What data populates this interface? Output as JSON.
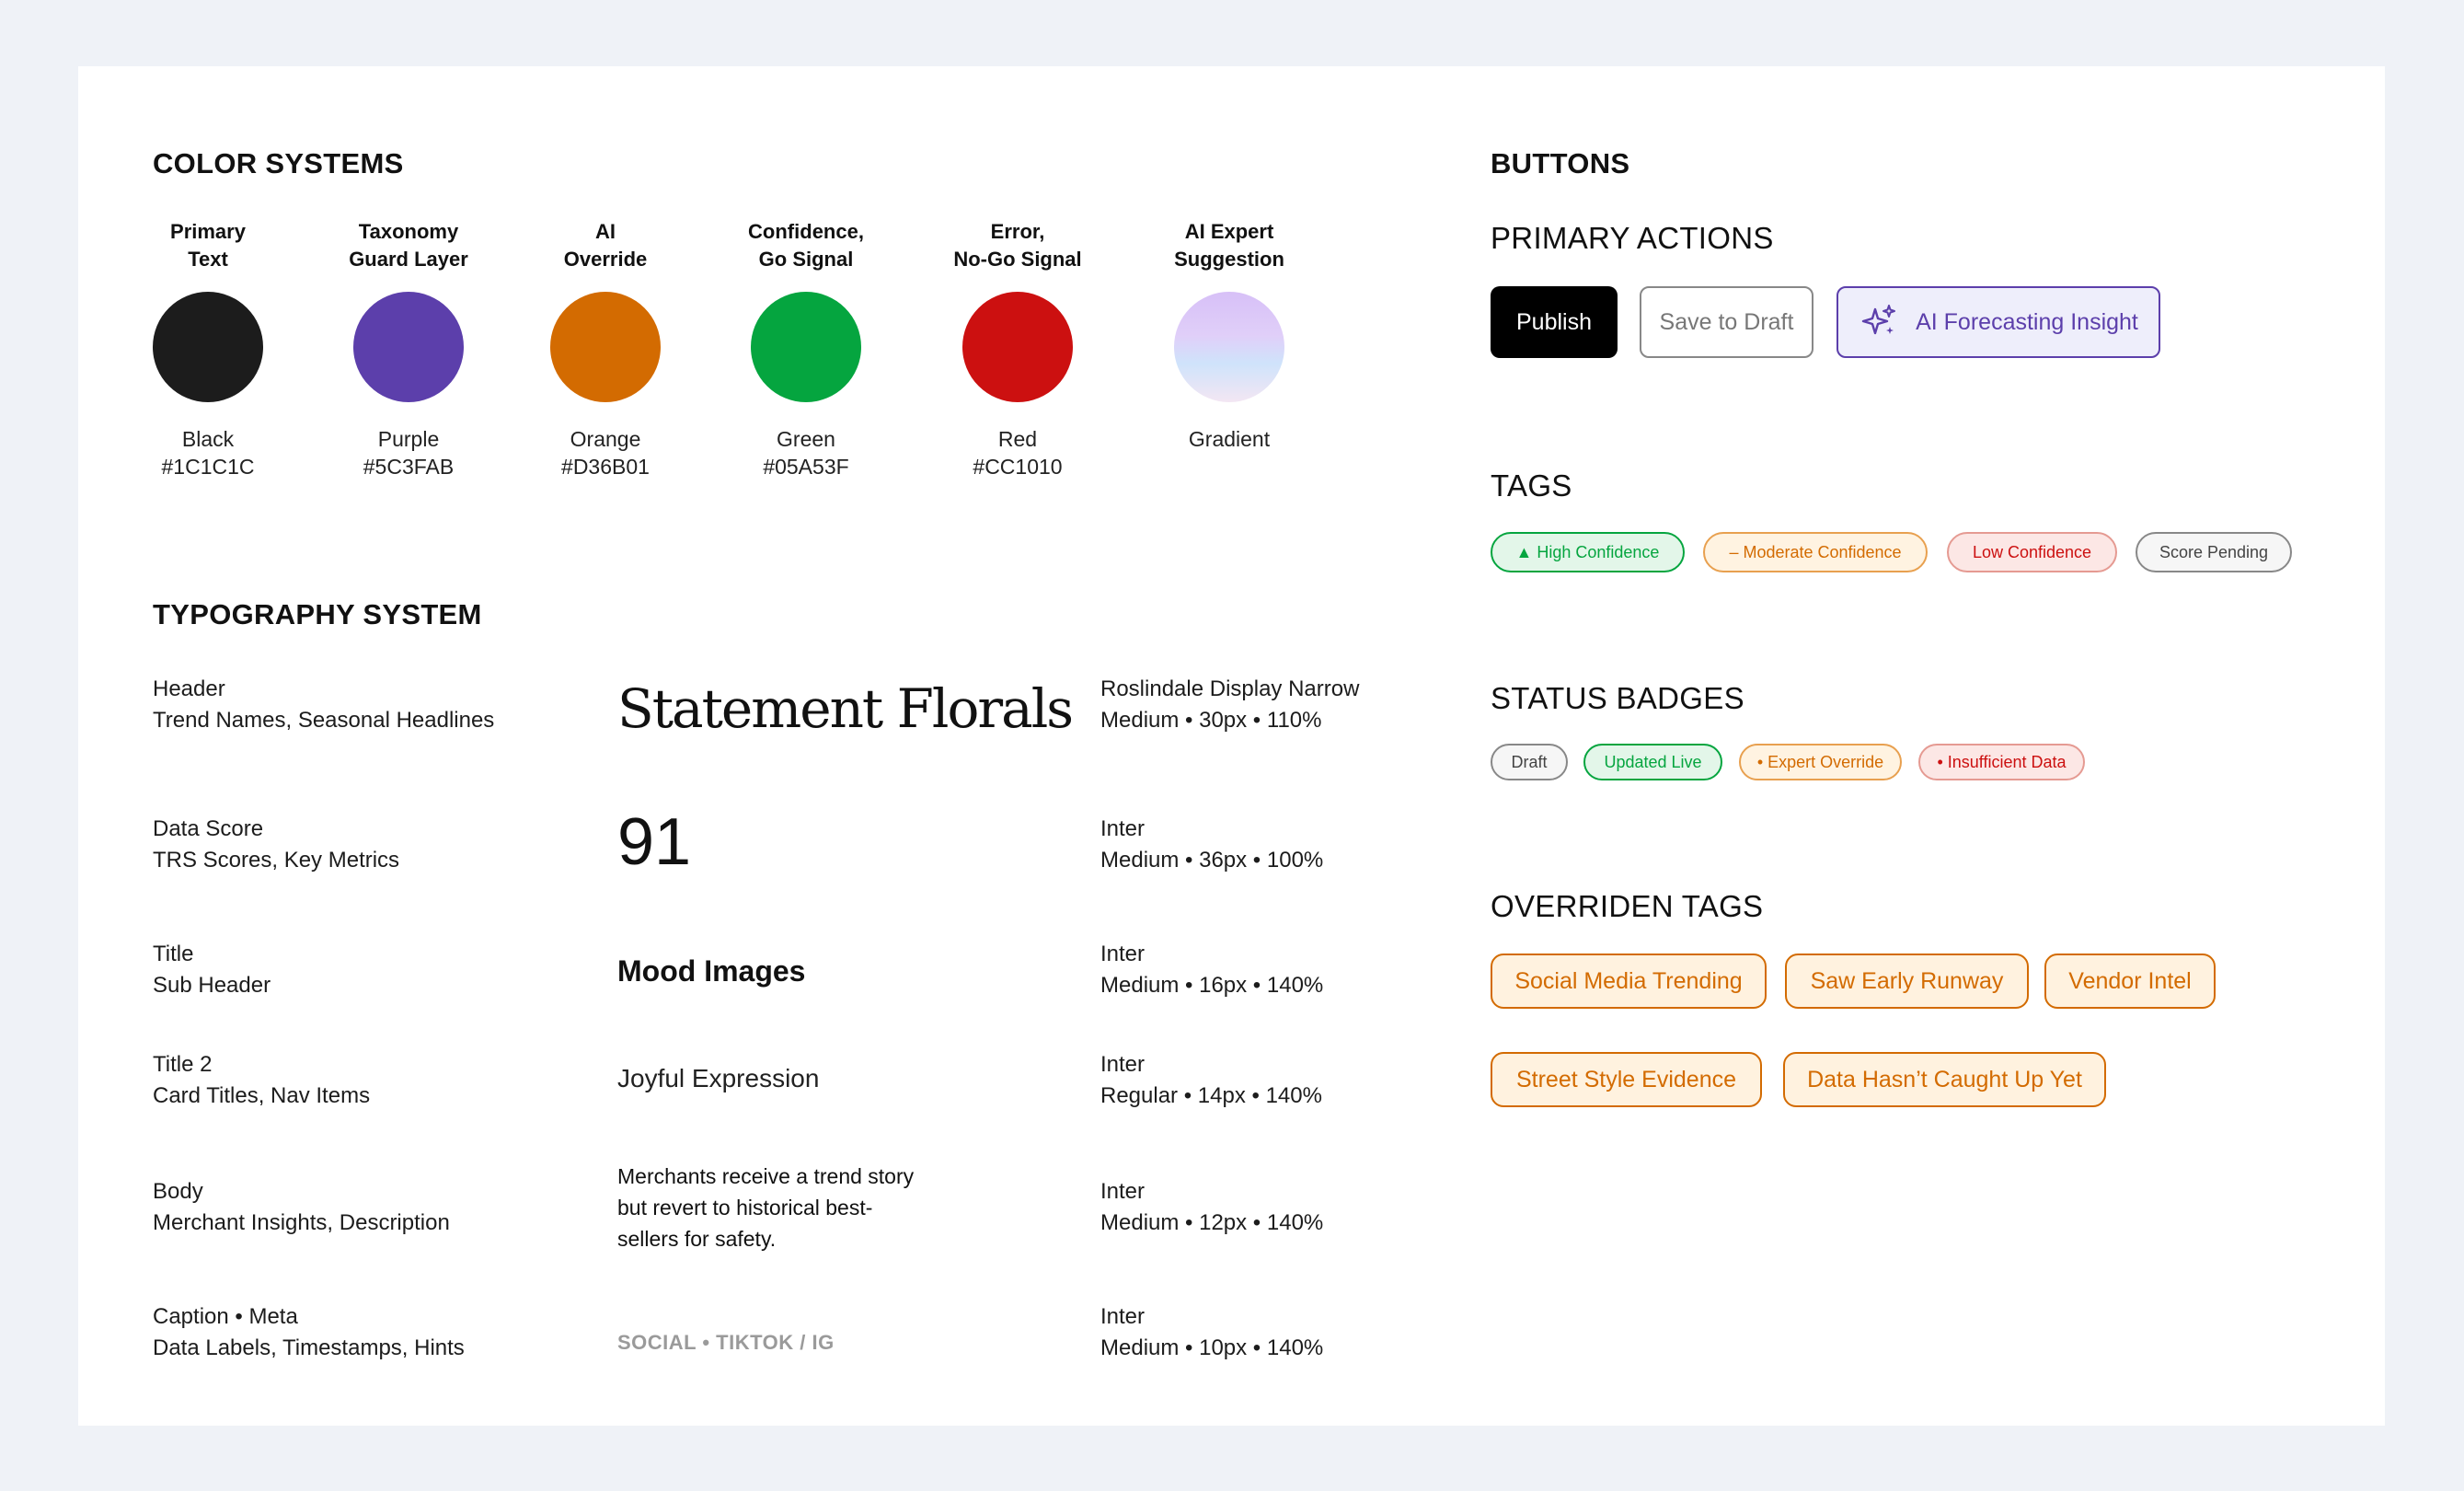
{
  "color_systems": {
    "title": "COLOR SYSTEMS",
    "swatches": [
      {
        "label1": "Primary",
        "label2": "Text",
        "name": "Black",
        "hex": "#1C1C1C",
        "color": "#1C1C1C"
      },
      {
        "label1": "Taxonomy",
        "label2": "Guard Layer",
        "name": "Purple",
        "hex": "#5C3FAB",
        "color": "#5C3FAB"
      },
      {
        "label1": "AI",
        "label2": "Override",
        "name": "Orange",
        "hex": "#D36B01",
        "color": "#D36B01"
      },
      {
        "label1": "Confidence,",
        "label2": "Go Signal",
        "name": "Green",
        "hex": "#05A53F",
        "color": "#05A53F"
      },
      {
        "label1": "Error,",
        "label2": "No-Go Signal",
        "name": "Red",
        "hex": "#CC1010",
        "color": "#CC1010"
      },
      {
        "label1": "AI Expert",
        "label2": "Suggestion",
        "name": "Gradient",
        "hex": "",
        "color": "gradient"
      }
    ]
  },
  "typography": {
    "title": "TYPOGRAPHY SYSTEM",
    "rows": [
      {
        "desc1": "Header",
        "desc2": "Trend Names, Seasonal Headlines",
        "sample": "Statement Florals",
        "spec1": "Roslindale Display Narrow",
        "spec2": "Medium • 30px • 110%"
      },
      {
        "desc1": "Data Score",
        "desc2": "TRS Scores, Key Metrics",
        "sample": "91",
        "spec1": "Inter",
        "spec2": "Medium • 36px • 100%"
      },
      {
        "desc1": "Title",
        "desc2": "Sub Header",
        "sample": "Mood Images",
        "spec1": "Inter",
        "spec2": "Medium • 16px • 140%"
      },
      {
        "desc1": "Title 2",
        "desc2": "Card Titles, Nav Items",
        "sample": "Joyful Expression",
        "spec1": "Inter",
        "spec2": "Regular • 14px • 140%"
      },
      {
        "desc1": "Body",
        "desc2": "Merchant Insights, Description",
        "sample": "Merchants receive a trend story but revert to historical best-sellers for safety.",
        "spec1": "Inter",
        "spec2": "Medium • 12px • 140%"
      },
      {
        "desc1": "Caption • Meta",
        "desc2": "Data Labels, Timestamps, Hints",
        "sample": "SOCIAL • TIKTOK / IG",
        "spec1": "Inter",
        "spec2": "Medium • 10px • 140%"
      }
    ]
  },
  "buttons": {
    "title": "BUTTONS",
    "primary_actions_title": "PRIMARY ACTIONS",
    "publish": "Publish",
    "save_draft": "Save to Draft",
    "ai_insight": "AI Forecasting Insight"
  },
  "tags": {
    "title": "TAGS",
    "items": [
      "▲ High Confidence",
      "– Moderate Confidence",
      "Low Confidence",
      "Score Pending"
    ]
  },
  "status_badges": {
    "title": "STATUS BADGES",
    "items": [
      "Draft",
      "Updated Live",
      "• Expert Override",
      "• Insufficient Data"
    ]
  },
  "overriden_tags": {
    "title": "OVERRIDEN TAGS",
    "items": [
      "Social Media Trending",
      "Saw Early Runway",
      "Vendor Intel",
      "Street Style Evidence",
      "Data Hasn’t Caught Up Yet"
    ]
  },
  "colors": {
    "accent_purple": "#5C3FAB",
    "orange": "#D36B01",
    "green": "#05A53F",
    "red": "#CC1010"
  }
}
